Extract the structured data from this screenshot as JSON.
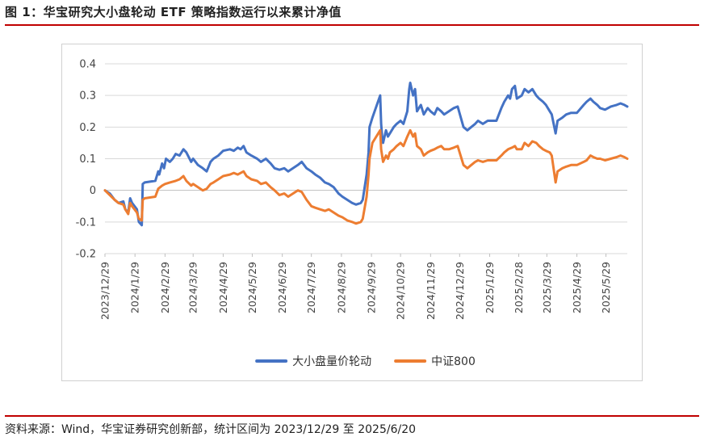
{
  "figure": {
    "title": "图 1：华宝研究大小盘轮动 ETF 策略指数运行以来累计净值",
    "source": "资料来源：Wind，华宝证券研究创新部，统计区间为 2023/12/29 至 2025/6/20"
  },
  "colors": {
    "accent_rule": "#c00000",
    "series1": "#4472c4",
    "series2": "#ed7d31"
  },
  "chart_data": {
    "type": "line",
    "x_type": "date",
    "ylim": [
      -0.2,
      0.4
    ],
    "yticks": [
      "0.4",
      "0.3",
      "0.2",
      "0.1",
      "0",
      "-0.1",
      "-0.2"
    ],
    "ytick_values": [
      0.4,
      0.3,
      0.2,
      0.1,
      0,
      -0.1,
      -0.2
    ],
    "xticks": [
      "2023/12/29",
      "2024/1/29",
      "2024/2/29",
      "2024/3/29",
      "2024/4/29",
      "2024/5/29",
      "2024/6/29",
      "2024/7/29",
      "2024/8/29",
      "2024/9/29",
      "2024/10/29",
      "2024/11/29",
      "2024/12/29",
      "2025/1/29",
      "2025/2/28",
      "2025/3/29",
      "2025/4/29",
      "2025/5/29"
    ],
    "x_end": "2025/6/20",
    "grid": "horizontal",
    "legend_position": "bottom",
    "series": [
      {
        "name": "大小盘量价轮动",
        "color": "#4472c4",
        "points": [
          [
            "2023/12/29",
            0
          ],
          [
            "2024/1/3",
            -0.01
          ],
          [
            "2024/1/8",
            -0.03
          ],
          [
            "2024/1/12",
            -0.04
          ],
          [
            "2024/1/17",
            -0.035
          ],
          [
            "2024/1/19",
            -0.06
          ],
          [
            "2024/1/22",
            -0.07
          ],
          [
            "2024/1/24",
            -0.025
          ],
          [
            "2024/1/26",
            -0.04
          ],
          [
            "2024/1/31",
            -0.06
          ],
          [
            "2024/2/2",
            -0.1
          ],
          [
            "2024/2/5",
            -0.11
          ],
          [
            "2024/2/6",
            0.02
          ],
          [
            "2024/2/8",
            0.025
          ],
          [
            "2024/2/19",
            0.03
          ],
          [
            "2024/2/22",
            0.06
          ],
          [
            "2024/2/23",
            0.05
          ],
          [
            "2024/2/26",
            0.085
          ],
          [
            "2024/2/28",
            0.07
          ],
          [
            "2024/3/1",
            0.1
          ],
          [
            "2024/3/5",
            0.09
          ],
          [
            "2024/3/8",
            0.1
          ],
          [
            "2024/3/11",
            0.115
          ],
          [
            "2024/3/15",
            0.11
          ],
          [
            "2024/3/19",
            0.13
          ],
          [
            "2024/3/22",
            0.12
          ],
          [
            "2024/3/27",
            0.09
          ],
          [
            "2024/3/29",
            0.1
          ],
          [
            "2024/4/3",
            0.08
          ],
          [
            "2024/4/8",
            0.07
          ],
          [
            "2024/4/12",
            0.06
          ],
          [
            "2024/4/16",
            0.09
          ],
          [
            "2024/4/19",
            0.1
          ],
          [
            "2024/4/24",
            0.11
          ],
          [
            "2024/4/29",
            0.125
          ],
          [
            "2024/5/6",
            0.13
          ],
          [
            "2024/5/10",
            0.125
          ],
          [
            "2024/5/14",
            0.135
          ],
          [
            "2024/5/17",
            0.13
          ],
          [
            "2024/5/20",
            0.14
          ],
          [
            "2024/5/23",
            0.12
          ],
          [
            "2024/5/28",
            0.11
          ],
          [
            "2024/6/3",
            0.1
          ],
          [
            "2024/6/7",
            0.09
          ],
          [
            "2024/6/12",
            0.1
          ],
          [
            "2024/6/17",
            0.085
          ],
          [
            "2024/6/21",
            0.07
          ],
          [
            "2024/6/26",
            0.065
          ],
          [
            "2024/7/1",
            0.07
          ],
          [
            "2024/7/5",
            0.06
          ],
          [
            "2024/7/10",
            0.07
          ],
          [
            "2024/7/15",
            0.08
          ],
          [
            "2024/7/19",
            0.09
          ],
          [
            "2024/7/24",
            0.07
          ],
          [
            "2024/7/29",
            0.06
          ],
          [
            "2024/8/2",
            0.05
          ],
          [
            "2024/8/7",
            0.04
          ],
          [
            "2024/8/12",
            0.025
          ],
          [
            "2024/8/16",
            0.02
          ],
          [
            "2024/8/21",
            0.01
          ],
          [
            "2024/8/26",
            -0.01
          ],
          [
            "2024/8/30",
            -0.02
          ],
          [
            "2024/9/4",
            -0.03
          ],
          [
            "2024/9/9",
            -0.04
          ],
          [
            "2024/9/13",
            -0.045
          ],
          [
            "2024/9/18",
            -0.04
          ],
          [
            "2024/9/20",
            -0.03
          ],
          [
            "2024/9/24",
            0.05
          ],
          [
            "2024/9/26",
            0.12
          ],
          [
            "2024/9/27",
            0.2
          ],
          [
            "2024/9/30",
            0.23
          ],
          [
            "2024/10/8",
            0.3
          ],
          [
            "2024/10/9",
            0.21
          ],
          [
            "2024/10/10",
            0.17
          ],
          [
            "2024/10/11",
            0.15
          ],
          [
            "2024/10/14",
            0.19
          ],
          [
            "2024/10/16",
            0.17
          ],
          [
            "2024/10/18",
            0.18
          ],
          [
            "2024/10/22",
            0.2
          ],
          [
            "2024/10/25",
            0.21
          ],
          [
            "2024/10/29",
            0.22
          ],
          [
            "2024/11/1",
            0.21
          ],
          [
            "2024/11/5",
            0.25
          ],
          [
            "2024/11/7",
            0.32
          ],
          [
            "2024/11/8",
            0.34
          ],
          [
            "2024/11/11",
            0.3
          ],
          [
            "2024/11/13",
            0.32
          ],
          [
            "2024/11/15",
            0.25
          ],
          [
            "2024/11/19",
            0.27
          ],
          [
            "2024/11/22",
            0.24
          ],
          [
            "2024/11/26",
            0.26
          ],
          [
            "2024/11/29",
            0.25
          ],
          [
            "2024/12/3",
            0.24
          ],
          [
            "2024/12/6",
            0.26
          ],
          [
            "2024/12/10",
            0.25
          ],
          [
            "2024/12/13",
            0.24
          ],
          [
            "2024/12/18",
            0.25
          ],
          [
            "2024/12/23",
            0.26
          ],
          [
            "2024/12/27",
            0.265
          ],
          [
            "2025/1/2",
            0.2
          ],
          [
            "2025/1/6",
            0.19
          ],
          [
            "2025/1/10",
            0.2
          ],
          [
            "2025/1/14",
            0.21
          ],
          [
            "2025/1/17",
            0.22
          ],
          [
            "2025/1/22",
            0.21
          ],
          [
            "2025/1/27",
            0.22
          ],
          [
            "2025/2/5",
            0.22
          ],
          [
            "2025/2/10",
            0.26
          ],
          [
            "2025/2/13",
            0.28
          ],
          [
            "2025/2/17",
            0.3
          ],
          [
            "2025/2/19",
            0.29
          ],
          [
            "2025/2/21",
            0.32
          ],
          [
            "2025/2/24",
            0.33
          ],
          [
            "2025/2/26",
            0.29
          ],
          [
            "2025/3/3",
            0.3
          ],
          [
            "2025/3/6",
            0.32
          ],
          [
            "2025/3/10",
            0.31
          ],
          [
            "2025/3/14",
            0.32
          ],
          [
            "2025/3/18",
            0.3
          ],
          [
            "2025/3/21",
            0.29
          ],
          [
            "2025/3/25",
            0.28
          ],
          [
            "2025/3/28",
            0.27
          ],
          [
            "2025/4/1",
            0.25
          ],
          [
            "2025/4/3",
            0.24
          ],
          [
            "2025/4/7",
            0.18
          ],
          [
            "2025/4/9",
            0.22
          ],
          [
            "2025/4/14",
            0.23
          ],
          [
            "2025/4/18",
            0.24
          ],
          [
            "2025/4/23",
            0.245
          ],
          [
            "2025/4/29",
            0.245
          ],
          [
            "2025/5/6",
            0.27
          ],
          [
            "2025/5/9",
            0.28
          ],
          [
            "2025/5/13",
            0.29
          ],
          [
            "2025/5/16",
            0.28
          ],
          [
            "2025/5/20",
            0.27
          ],
          [
            "2025/5/23",
            0.26
          ],
          [
            "2025/5/28",
            0.255
          ],
          [
            "2025/6/3",
            0.265
          ],
          [
            "2025/6/9",
            0.27
          ],
          [
            "2025/6/13",
            0.275
          ],
          [
            "2025/6/17",
            0.27
          ],
          [
            "2025/6/20",
            0.265
          ]
        ]
      },
      {
        "name": "中证800",
        "color": "#ed7d31",
        "points": [
          [
            "2023/12/29",
            0
          ],
          [
            "2024/1/3",
            -0.015
          ],
          [
            "2024/1/8",
            -0.03
          ],
          [
            "2024/1/12",
            -0.04
          ],
          [
            "2024/1/17",
            -0.045
          ],
          [
            "2024/1/19",
            -0.06
          ],
          [
            "2024/1/22",
            -0.075
          ],
          [
            "2024/1/24",
            -0.04
          ],
          [
            "2024/1/26",
            -0.05
          ],
          [
            "2024/1/31",
            -0.07
          ],
          [
            "2024/2/2",
            -0.09
          ],
          [
            "2024/2/5",
            -0.095
          ],
          [
            "2024/2/6",
            -0.03
          ],
          [
            "2024/2/8",
            -0.025
          ],
          [
            "2024/2/19",
            -0.02
          ],
          [
            "2024/2/22",
            0.005
          ],
          [
            "2024/2/26",
            0.015
          ],
          [
            "2024/2/29",
            0.02
          ],
          [
            "2024/3/5",
            0.025
          ],
          [
            "2024/3/11",
            0.03
          ],
          [
            "2024/3/15",
            0.035
          ],
          [
            "2024/3/19",
            0.045
          ],
          [
            "2024/3/22",
            0.03
          ],
          [
            "2024/3/27",
            0.015
          ],
          [
            "2024/3/29",
            0.02
          ],
          [
            "2024/4/3",
            0.01
          ],
          [
            "2024/4/8",
            0.0
          ],
          [
            "2024/4/12",
            0.005
          ],
          [
            "2024/4/16",
            0.02
          ],
          [
            "2024/4/19",
            0.025
          ],
          [
            "2024/4/24",
            0.035
          ],
          [
            "2024/4/29",
            0.045
          ],
          [
            "2024/5/6",
            0.05
          ],
          [
            "2024/5/10",
            0.055
          ],
          [
            "2024/5/14",
            0.05
          ],
          [
            "2024/5/20",
            0.06
          ],
          [
            "2024/5/23",
            0.045
          ],
          [
            "2024/5/28",
            0.035
          ],
          [
            "2024/6/3",
            0.03
          ],
          [
            "2024/6/7",
            0.02
          ],
          [
            "2024/6/12",
            0.025
          ],
          [
            "2024/6/17",
            0.01
          ],
          [
            "2024/6/21",
            0.0
          ],
          [
            "2024/6/26",
            -0.015
          ],
          [
            "2024/7/1",
            -0.01
          ],
          [
            "2024/7/5",
            -0.02
          ],
          [
            "2024/7/10",
            -0.01
          ],
          [
            "2024/7/15",
            0.0
          ],
          [
            "2024/7/19",
            -0.005
          ],
          [
            "2024/7/24",
            -0.03
          ],
          [
            "2024/7/29",
            -0.05
          ],
          [
            "2024/8/2",
            -0.055
          ],
          [
            "2024/8/7",
            -0.06
          ],
          [
            "2024/8/12",
            -0.065
          ],
          [
            "2024/8/16",
            -0.06
          ],
          [
            "2024/8/21",
            -0.07
          ],
          [
            "2024/8/26",
            -0.08
          ],
          [
            "2024/8/30",
            -0.085
          ],
          [
            "2024/9/4",
            -0.095
          ],
          [
            "2024/9/9",
            -0.1
          ],
          [
            "2024/9/13",
            -0.105
          ],
          [
            "2024/9/18",
            -0.1
          ],
          [
            "2024/9/20",
            -0.09
          ],
          [
            "2024/9/24",
            -0.02
          ],
          [
            "2024/9/26",
            0.05
          ],
          [
            "2024/9/27",
            0.1
          ],
          [
            "2024/9/30",
            0.15
          ],
          [
            "2024/10/8",
            0.19
          ],
          [
            "2024/10/9",
            0.13
          ],
          [
            "2024/10/10",
            0.11
          ],
          [
            "2024/10/11",
            0.09
          ],
          [
            "2024/10/14",
            0.11
          ],
          [
            "2024/10/16",
            0.1
          ],
          [
            "2024/10/18",
            0.12
          ],
          [
            "2024/10/22",
            0.13
          ],
          [
            "2024/10/25",
            0.14
          ],
          [
            "2024/10/29",
            0.15
          ],
          [
            "2024/11/1",
            0.14
          ],
          [
            "2024/11/5",
            0.17
          ],
          [
            "2024/11/8",
            0.19
          ],
          [
            "2024/11/11",
            0.17
          ],
          [
            "2024/11/13",
            0.18
          ],
          [
            "2024/11/15",
            0.14
          ],
          [
            "2024/11/19",
            0.13
          ],
          [
            "2024/11/22",
            0.11
          ],
          [
            "2024/11/26",
            0.12
          ],
          [
            "2024/11/29",
            0.125
          ],
          [
            "2024/12/3",
            0.13
          ],
          [
            "2024/12/6",
            0.135
          ],
          [
            "2024/12/10",
            0.14
          ],
          [
            "2024/12/13",
            0.13
          ],
          [
            "2024/12/18",
            0.13
          ],
          [
            "2024/12/23",
            0.135
          ],
          [
            "2024/12/27",
            0.14
          ],
          [
            "2025/1/2",
            0.08
          ],
          [
            "2025/1/6",
            0.07
          ],
          [
            "2025/1/10",
            0.08
          ],
          [
            "2025/1/14",
            0.09
          ],
          [
            "2025/1/17",
            0.095
          ],
          [
            "2025/1/22",
            0.09
          ],
          [
            "2025/1/27",
            0.095
          ],
          [
            "2025/2/5",
            0.095
          ],
          [
            "2025/2/10",
            0.11
          ],
          [
            "2025/2/13",
            0.12
          ],
          [
            "2025/2/17",
            0.13
          ],
          [
            "2025/2/21",
            0.135
          ],
          [
            "2025/2/24",
            0.14
          ],
          [
            "2025/2/26",
            0.13
          ],
          [
            "2025/3/3",
            0.13
          ],
          [
            "2025/3/6",
            0.15
          ],
          [
            "2025/3/10",
            0.14
          ],
          [
            "2025/3/14",
            0.155
          ],
          [
            "2025/3/18",
            0.15
          ],
          [
            "2025/3/21",
            0.14
          ],
          [
            "2025/3/25",
            0.13
          ],
          [
            "2025/3/28",
            0.125
          ],
          [
            "2025/4/1",
            0.12
          ],
          [
            "2025/4/3",
            0.11
          ],
          [
            "2025/4/7",
            0.025
          ],
          [
            "2025/4/9",
            0.06
          ],
          [
            "2025/4/14",
            0.07
          ],
          [
            "2025/4/18",
            0.075
          ],
          [
            "2025/4/23",
            0.08
          ],
          [
            "2025/4/29",
            0.08
          ],
          [
            "2025/5/6",
            0.09
          ],
          [
            "2025/5/9",
            0.095
          ],
          [
            "2025/5/13",
            0.11
          ],
          [
            "2025/5/16",
            0.105
          ],
          [
            "2025/5/20",
            0.1
          ],
          [
            "2025/5/23",
            0.1
          ],
          [
            "2025/5/28",
            0.095
          ],
          [
            "2025/6/3",
            0.1
          ],
          [
            "2025/6/9",
            0.105
          ],
          [
            "2025/6/13",
            0.11
          ],
          [
            "2025/6/17",
            0.105
          ],
          [
            "2025/6/20",
            0.1
          ]
        ]
      }
    ]
  }
}
